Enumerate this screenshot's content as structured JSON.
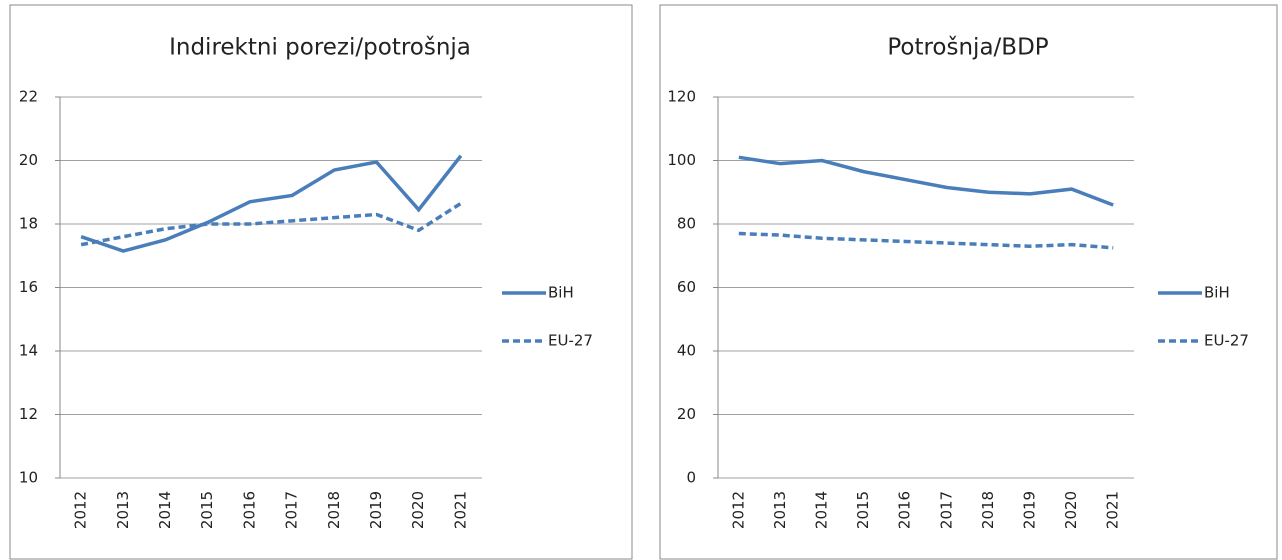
{
  "chart_data": [
    {
      "type": "line",
      "title": "Indirektni porezi/potrošnja",
      "categories": [
        "2012",
        "2013",
        "2014",
        "2015",
        "2016",
        "2017",
        "2018",
        "2019",
        "2020",
        "2021"
      ],
      "series": [
        {
          "name": "BiH",
          "color": "#4a7ebb",
          "dash": false,
          "values": [
            17.6,
            17.15,
            17.5,
            18.05,
            18.7,
            18.9,
            19.7,
            19.95,
            18.45,
            20.15
          ]
        },
        {
          "name": "EU-27",
          "color": "#4a7ebb",
          "dash": true,
          "values": [
            17.35,
            17.6,
            17.85,
            18.0,
            18.0,
            18.1,
            18.2,
            18.3,
            17.8,
            18.65
          ]
        }
      ],
      "ylim": [
        10,
        22
      ],
      "yticks": [
        10,
        12,
        14,
        16,
        18,
        20,
        22
      ],
      "grid": true,
      "legend": "right"
    },
    {
      "type": "line",
      "title": "Potrošnja/BDP",
      "categories": [
        "2012",
        "2013",
        "2014",
        "2015",
        "2016",
        "2017",
        "2018",
        "2019",
        "2020",
        "2021"
      ],
      "series": [
        {
          "name": "BiH",
          "color": "#4a7ebb",
          "dash": false,
          "values": [
            101,
            99,
            100,
            96.5,
            94,
            91.5,
            90,
            89.5,
            91,
            86
          ]
        },
        {
          "name": "EU-27",
          "color": "#4a7ebb",
          "dash": true,
          "values": [
            77,
            76.5,
            75.5,
            75,
            74.5,
            74,
            73.5,
            73,
            73.5,
            72.5
          ]
        }
      ],
      "ylim": [
        0,
        120
      ],
      "yticks": [
        0,
        20,
        40,
        60,
        80,
        100,
        120
      ],
      "grid": true,
      "legend": "right"
    }
  ]
}
